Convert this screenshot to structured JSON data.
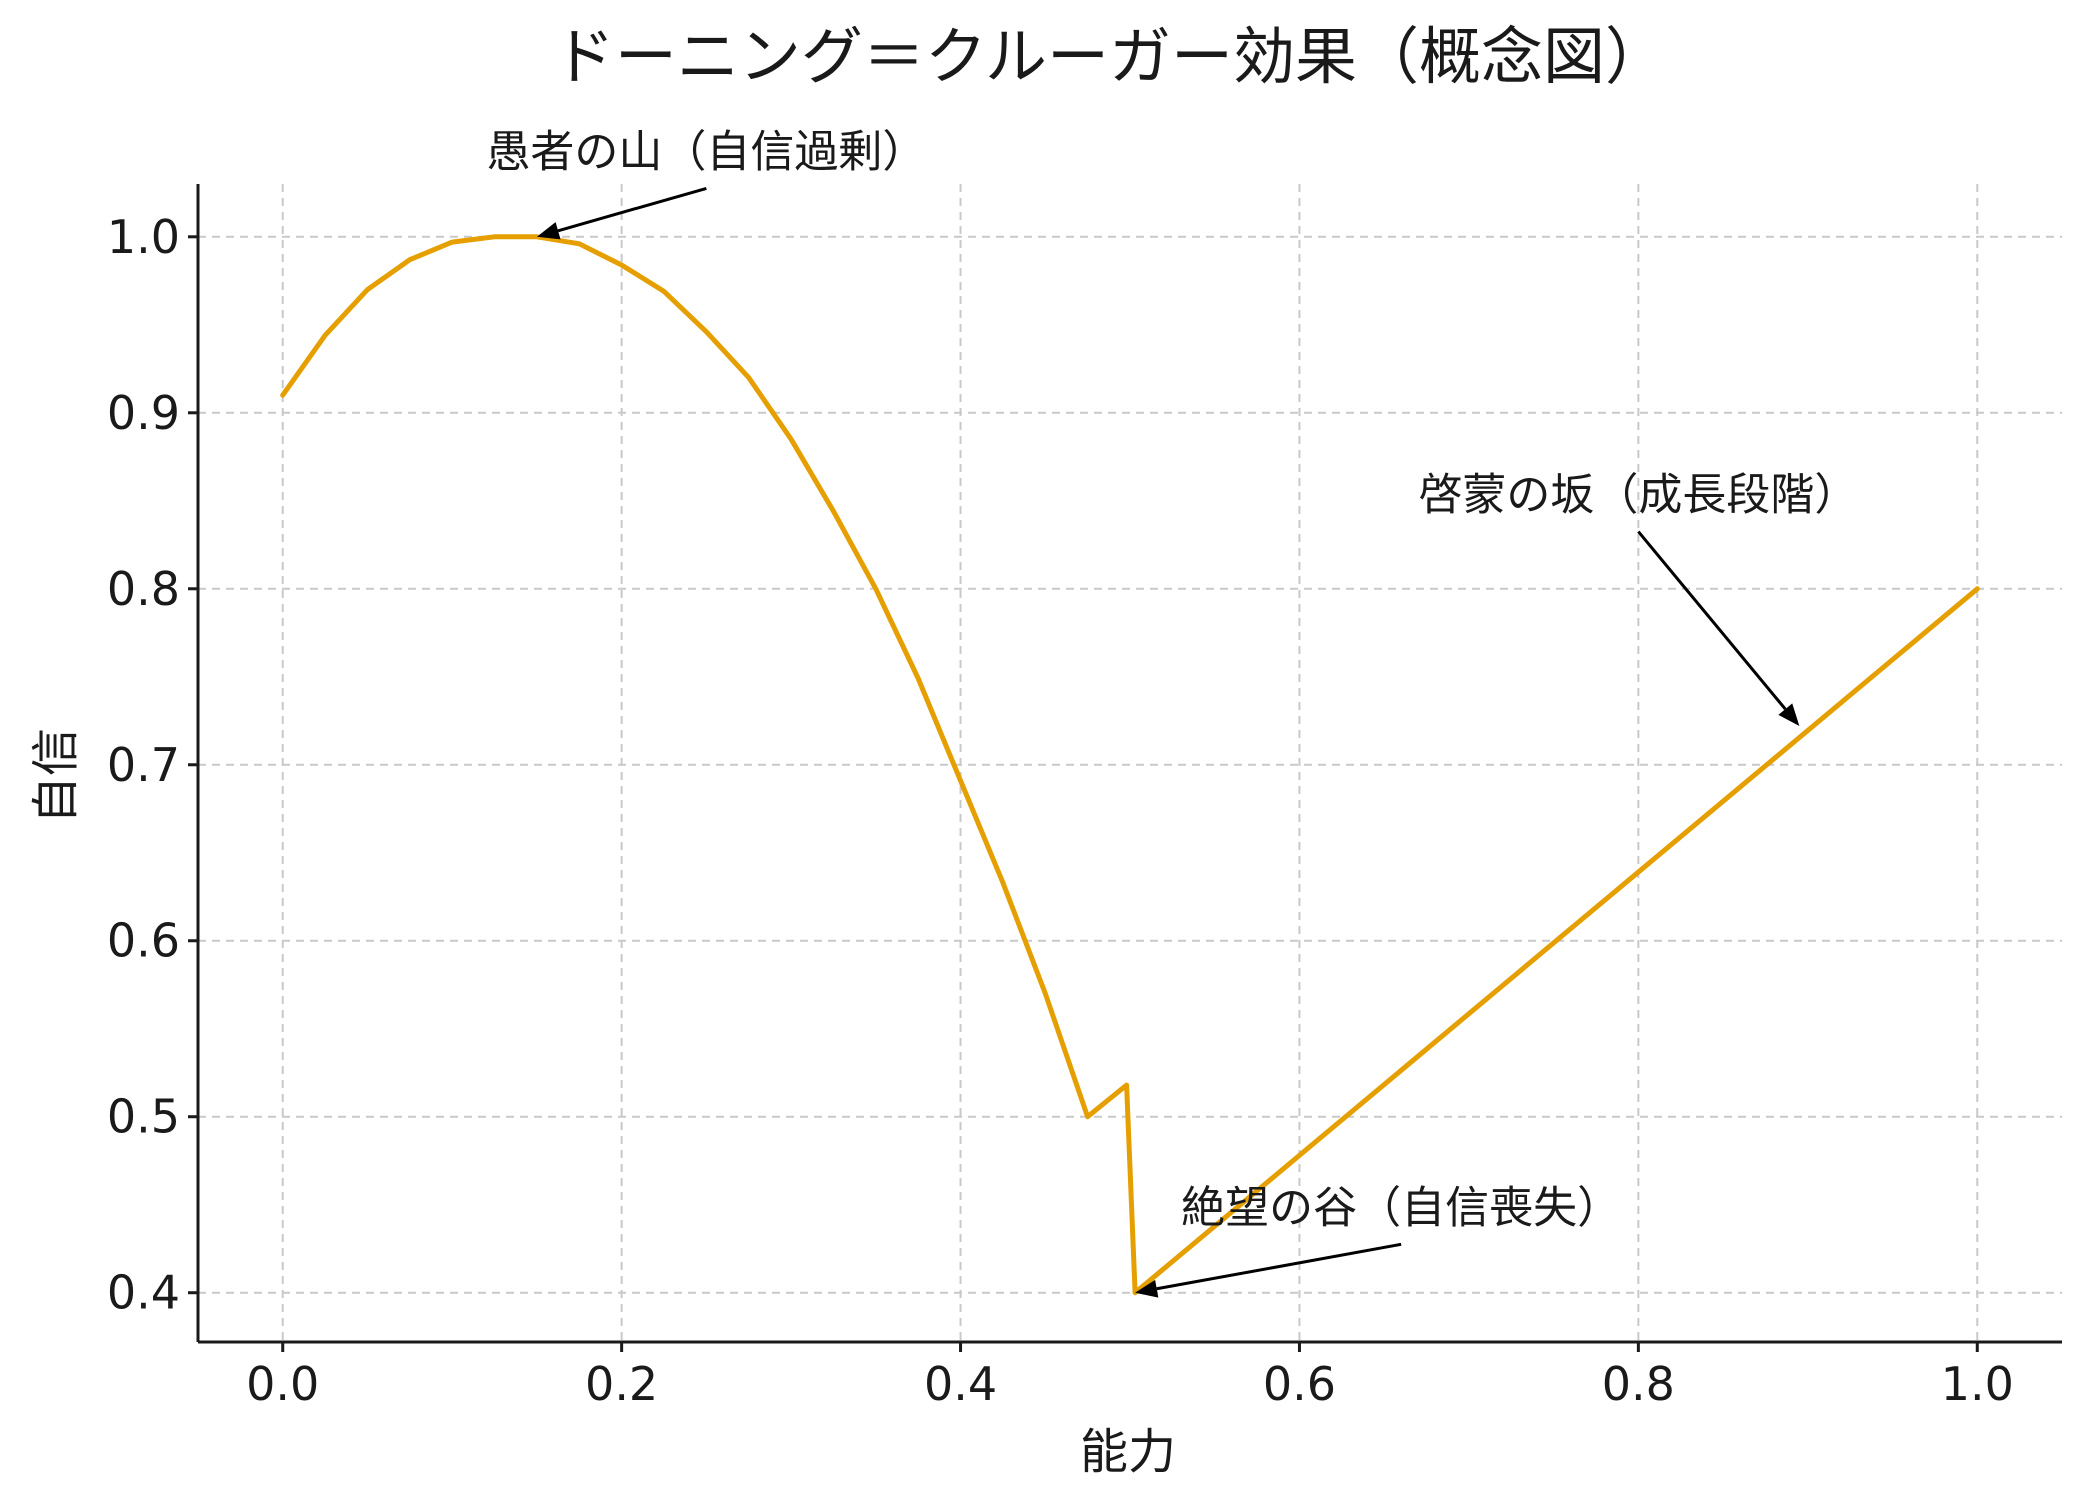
{
  "chart_data": {
    "type": "line",
    "title": "ドーニング＝クルーガー効果（概念図）",
    "xlabel": "能力",
    "ylabel": "自信",
    "xlim": [
      -0.05,
      1.05
    ],
    "ylim": [
      0.372,
      1.03
    ],
    "xticks": [
      0.0,
      0.2,
      0.4,
      0.6,
      0.8,
      1.0
    ],
    "xtick_labels": [
      "0.0",
      "0.2",
      "0.4",
      "0.6",
      "0.8",
      "1.0"
    ],
    "yticks": [
      0.4,
      0.5,
      0.6,
      0.7,
      0.8,
      0.9,
      1.0
    ],
    "ytick_labels": [
      "0.4",
      "0.5",
      "0.6",
      "0.7",
      "0.8",
      "0.9",
      "1.0"
    ],
    "grid": true,
    "line_color": "#E69F00",
    "series": [
      {
        "x": [
          0.0,
          0.025,
          0.05,
          0.075,
          0.1,
          0.125,
          0.15,
          0.175,
          0.2,
          0.225,
          0.25,
          0.275,
          0.3,
          0.325,
          0.35,
          0.375,
          0.4,
          0.425,
          0.45,
          0.475,
          0.498,
          0.503,
          1.0
        ],
        "y": [
          0.91,
          0.944,
          0.97,
          0.987,
          0.997,
          1.0,
          1.0,
          0.996,
          0.984,
          0.969,
          0.946,
          0.92,
          0.885,
          0.844,
          0.8,
          0.749,
          0.691,
          0.633,
          0.57,
          0.5,
          0.518,
          0.4,
          0.8
        ]
      }
    ],
    "annotations": [
      {
        "text": "愚者の山（自信過剰）",
        "xy": [
          0.15,
          1.0
        ],
        "xytext": [
          0.25,
          1.04
        ]
      },
      {
        "text": "絶望の谷（自信喪失）",
        "xy": [
          0.503,
          0.4
        ],
        "xytext": [
          0.66,
          0.44
        ]
      },
      {
        "text": "啓蒙の坂（成長段階）",
        "xy": [
          0.895,
          0.722
        ],
        "xytext": [
          0.8,
          0.845
        ]
      }
    ]
  }
}
